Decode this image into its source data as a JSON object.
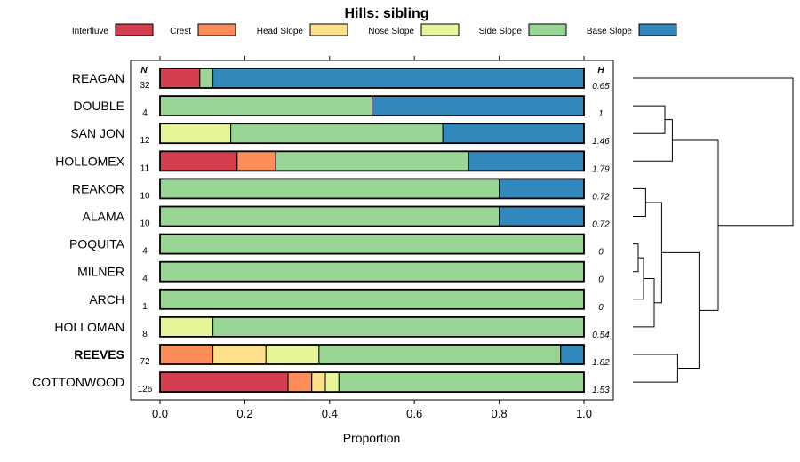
{
  "chart_data": {
    "type": "bar",
    "orientation": "horizontal",
    "stacked": true,
    "title": "Hills: sibling",
    "xlabel": "Proportion",
    "ylabel": "",
    "xlim": [
      0,
      1
    ],
    "xticks": [
      "0.0",
      "0.2",
      "0.4",
      "0.6",
      "0.8",
      "1.0"
    ],
    "n_header": "N",
    "h_header": "H",
    "legend_position": "top",
    "series": [
      {
        "name": "Interfluve",
        "color": "#D53E4F"
      },
      {
        "name": "Crest",
        "color": "#FC8D59"
      },
      {
        "name": "Head Slope",
        "color": "#FEE08B"
      },
      {
        "name": "Nose Slope",
        "color": "#E6F598"
      },
      {
        "name": "Side Slope",
        "color": "#99D594"
      },
      {
        "name": "Base Slope",
        "color": "#3288BD"
      }
    ],
    "categories": [
      {
        "label": "REAGAN",
        "n": "32",
        "h": "0.65",
        "bold": false,
        "values": [
          0.094,
          0,
          0,
          0,
          0.031,
          0.875
        ]
      },
      {
        "label": "DOUBLE",
        "n": "4",
        "h": "1",
        "bold": false,
        "values": [
          0,
          0,
          0,
          0,
          0.5,
          0.5
        ]
      },
      {
        "label": "SAN JON",
        "n": "12",
        "h": "1.46",
        "bold": false,
        "values": [
          0,
          0,
          0,
          0.167,
          0.5,
          0.333
        ]
      },
      {
        "label": "HOLLOMEX",
        "n": "11",
        "h": "1.79",
        "bold": false,
        "values": [
          0.182,
          0.091,
          0,
          0,
          0.455,
          0.273
        ]
      },
      {
        "label": "REAKOR",
        "n": "10",
        "h": "0.72",
        "bold": false,
        "values": [
          0,
          0,
          0,
          0,
          0.8,
          0.2
        ]
      },
      {
        "label": "ALAMA",
        "n": "10",
        "h": "0.72",
        "bold": false,
        "values": [
          0,
          0,
          0,
          0,
          0.8,
          0.2
        ]
      },
      {
        "label": "POQUITA",
        "n": "4",
        "h": "0",
        "bold": false,
        "values": [
          0,
          0,
          0,
          0,
          1.0,
          0
        ]
      },
      {
        "label": "MILNER",
        "n": "4",
        "h": "0",
        "bold": false,
        "values": [
          0,
          0,
          0,
          0,
          1.0,
          0
        ]
      },
      {
        "label": "ARCH",
        "n": "1",
        "h": "0",
        "bold": false,
        "values": [
          0,
          0,
          0,
          0,
          1.0,
          0
        ]
      },
      {
        "label": "HOLLOMAN",
        "n": "8",
        "h": "0.54",
        "bold": false,
        "values": [
          0,
          0,
          0,
          0.125,
          0.875,
          0
        ]
      },
      {
        "label": "REEVES",
        "n": "72",
        "h": "1.82",
        "bold": true,
        "values": [
          0,
          0.125,
          0.125,
          0.125,
          0.57,
          0.055
        ]
      },
      {
        "label": "COTTONWOOD",
        "n": "126",
        "h": "1.53",
        "bold": false,
        "values": [
          0.302,
          0.056,
          0.032,
          0.032,
          0.578,
          0
        ]
      }
    ],
    "dendrogram": {
      "description": "hierarchical clustering of categories",
      "merges": [
        [
          "POQUITA",
          "MILNER",
          0.05
        ],
        [
          "MILNER-POQUITA",
          "ARCH",
          0.1
        ],
        [
          "REAKOR",
          "ALAMA",
          0.12
        ],
        [
          "POQUITA-MILNER-ARCH",
          "HOLLOMAN",
          0.2
        ],
        [
          "REAKOR-ALAMA",
          "POQUITA-MILNER-ARCH-HOLLOMAN",
          0.27
        ],
        [
          "DOUBLE",
          "SAN JON",
          0.3
        ],
        [
          "DOUBLE-SAN JON",
          "HOLLOMEX",
          0.37
        ],
        [
          "REEVES",
          "COTTONWOOD",
          0.42
        ],
        [
          "REAKOR..HOLLOMAN",
          "REEVES-COTTONWOOD",
          0.62
        ],
        [
          "DOUBLE-SAN JON-HOLLOMEX",
          "REAKOR..COTTONWOOD",
          0.8
        ],
        [
          "REAGAN",
          "DOUBLE..COTTONWOOD",
          1.5
        ]
      ]
    }
  }
}
